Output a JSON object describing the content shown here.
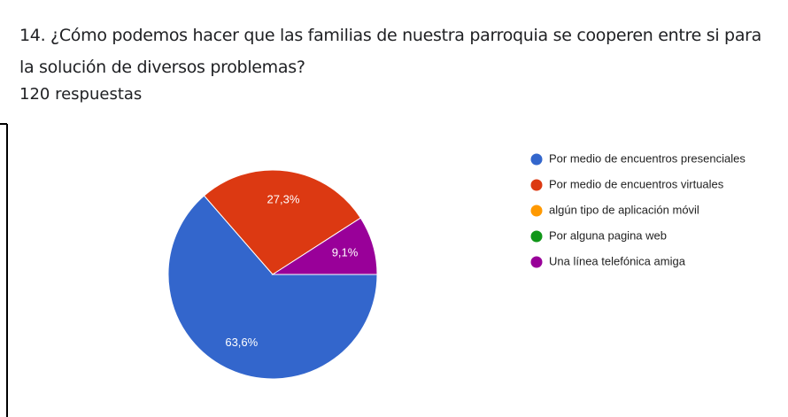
{
  "chart_data": {
    "type": "pie",
    "title": "14. ¿Cómo podemos hacer que las familias de nuestra parroquia se cooperen entre si para la solución de diversos problemas?",
    "subtitle": "120 respuestas",
    "categories": [
      "Por medio de encuentros presenciales",
      "Por medio de encuentros virtuales",
      "algún tipo de aplicación móvil",
      "Por alguna pagina web",
      "Una línea telefónica amiga"
    ],
    "values": [
      63.6,
      27.3,
      0,
      0,
      9.1
    ],
    "value_labels": [
      "63,6%",
      "27,3%",
      null,
      null,
      "9,1%"
    ],
    "colors": [
      "#3366cc",
      "#dc3912",
      "#ff9900",
      "#109618",
      "#990099"
    ],
    "legend": "right"
  }
}
